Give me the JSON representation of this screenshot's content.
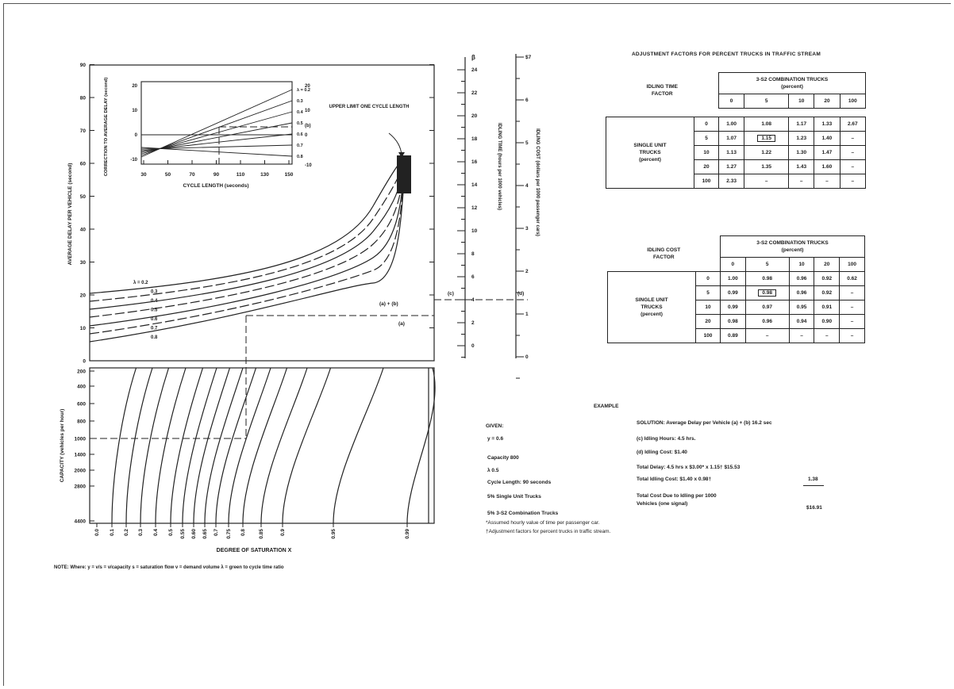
{
  "main_chart": {
    "y_label": "AVERAGE DELAY PER VEHICLE (second)",
    "y_ticks": [
      "0",
      "10",
      "20",
      "30",
      "40",
      "50",
      "60",
      "70",
      "80",
      "90"
    ],
    "curve_labels": [
      "λ = 0.2",
      "0.3",
      "0.4",
      "0.5",
      "0.6",
      "0.7",
      "0.8"
    ],
    "annotation": "UPPER LIMIT ONE CYCLE LENGTH",
    "marks": [
      "(a) + (b)",
      "(a)"
    ]
  },
  "inset": {
    "y_label": "CORRECTION TO AVERAGE DELAY (second)",
    "x_label": "CYCLE LENGTH (seconds)",
    "x_ticks": [
      "30",
      "50",
      "70",
      "90",
      "110",
      "130",
      "150"
    ],
    "y_ticks_left": [
      "20",
      "10",
      "0",
      "-10"
    ],
    "y_ticks_right": [
      "20",
      "10",
      "(b)",
      "0",
      "-10"
    ],
    "lambda_labels": [
      "λ = 0.2",
      "0.3",
      "0.4",
      "0.5",
      "0.6",
      "0.7",
      "0.8"
    ]
  },
  "scales": {
    "beta": "β",
    "idling_time_label": "IDLING TIME (hours per 1000 vehicles)",
    "idling_time_ticks": [
      "24",
      "22",
      "20",
      "18",
      "16",
      "14",
      "12",
      "10",
      "8",
      "6",
      "4",
      "2",
      "0"
    ],
    "idling_cost_label": "IDLING COST (dollars per 1000 passenger cars)",
    "idling_cost_ticks": [
      "$7",
      "6",
      "5",
      "4",
      "3",
      "2",
      "1",
      "0"
    ],
    "marks": [
      "(c)",
      "(d)"
    ]
  },
  "capacity_chart": {
    "y_label": "CAPACITY (vehicles per hour)",
    "y_ticks": [
      "200",
      "400",
      "600",
      "800",
      "1000",
      "1400",
      "2000",
      "2800",
      "4400"
    ],
    "x_ticks": [
      "0.0",
      "0.1",
      "0.2",
      "0.3",
      "0.4",
      "0.5",
      "0.55",
      "0.60",
      "0.65",
      "0.7",
      "0.75",
      "0.8",
      "0.85",
      "0.9",
      "0.95",
      "0.99"
    ],
    "x_label": "DEGREE OF SATURATION X"
  },
  "table1": {
    "title": "ADJUSTMENT FACTORS FOR PERCENT TRUCKS IN TRAFFIC STREAM",
    "factor": "IDLING TIME FACTOR",
    "header": "3-S2 COMBINATION TRUCKS (percent)",
    "cols": [
      "0",
      "5",
      "10",
      "20",
      "100"
    ],
    "row_label": "SINGLE UNIT TRUCKS (percent)",
    "rows": [
      {
        "p": "0",
        "v": [
          "1.00",
          "1.08",
          "1.17",
          "1.33",
          "2.67"
        ]
      },
      {
        "p": "5",
        "v": [
          "1.07",
          "1.15",
          "1.23",
          "1.40",
          "–"
        ]
      },
      {
        "p": "10",
        "v": [
          "1.13",
          "1.22",
          "1.30",
          "1.47",
          "–"
        ]
      },
      {
        "p": "20",
        "v": [
          "1.27",
          "1.35",
          "1.43",
          "1.60",
          "–"
        ]
      },
      {
        "p": "100",
        "v": [
          "2.33",
          "–",
          "–",
          "–",
          "–"
        ]
      }
    ]
  },
  "table2": {
    "factor": "IDLING COST FACTOR",
    "header": "3-S2 COMBINATION TRUCKS (percent)",
    "cols": [
      "0",
      "5",
      "10",
      "20",
      "100"
    ],
    "row_label": "SINGLE UNIT TRUCKS (percent)",
    "rows": [
      {
        "p": "0",
        "v": [
          "1.00",
          "0.98",
          "0.96",
          "0.92",
          "0.62"
        ]
      },
      {
        "p": "5",
        "v": [
          "0.99",
          "0.98",
          "0.96",
          "0.92",
          "–"
        ]
      },
      {
        "p": "10",
        "v": [
          "0.99",
          "0.97",
          "0.95",
          "0.91",
          "–"
        ]
      },
      {
        "p": "20",
        "v": [
          "0.98",
          "0.96",
          "0.94",
          "0.90",
          "–"
        ]
      },
      {
        "p": "100",
        "v": [
          "0.89",
          "–",
          "–",
          "–",
          "–"
        ]
      }
    ]
  },
  "example": {
    "title": "EXAMPLE",
    "given": "GIVEN:",
    "given_lines": [
      "y = 0.6",
      "Capacity   800",
      "λ   0.5",
      "Cycle Length:  90 seconds",
      "5% Single Unit Trucks",
      "5% 3-S2 Combination Trucks"
    ],
    "solution": [
      "SOLUTION:  Average Delay per Vehicle  (a) + (b)   16.2 sec",
      "(c)  Idling Hours:  4.5 hrs.",
      "(d)  Idling Cost:  $1.40",
      "Total Delay:   4.5 hrs x $3.00* x 1.15† $15.53",
      "Total Idling Cost:  $1.40 x 0.98†",
      "Total Cost Due to Idling per 1000",
      "   Vehicles (one signal)"
    ],
    "amounts": [
      "1.38",
      "$16.91"
    ],
    "footnotes": [
      "*Assumed hourly value of time per passenger car.",
      "†Adjustment factors for percent trucks in traffic stream."
    ]
  },
  "note": "NOTE:   Where:  y = v/s = v/capacity   s = saturation flow   v = demand volume   λ = green to cycle time ratio"
}
